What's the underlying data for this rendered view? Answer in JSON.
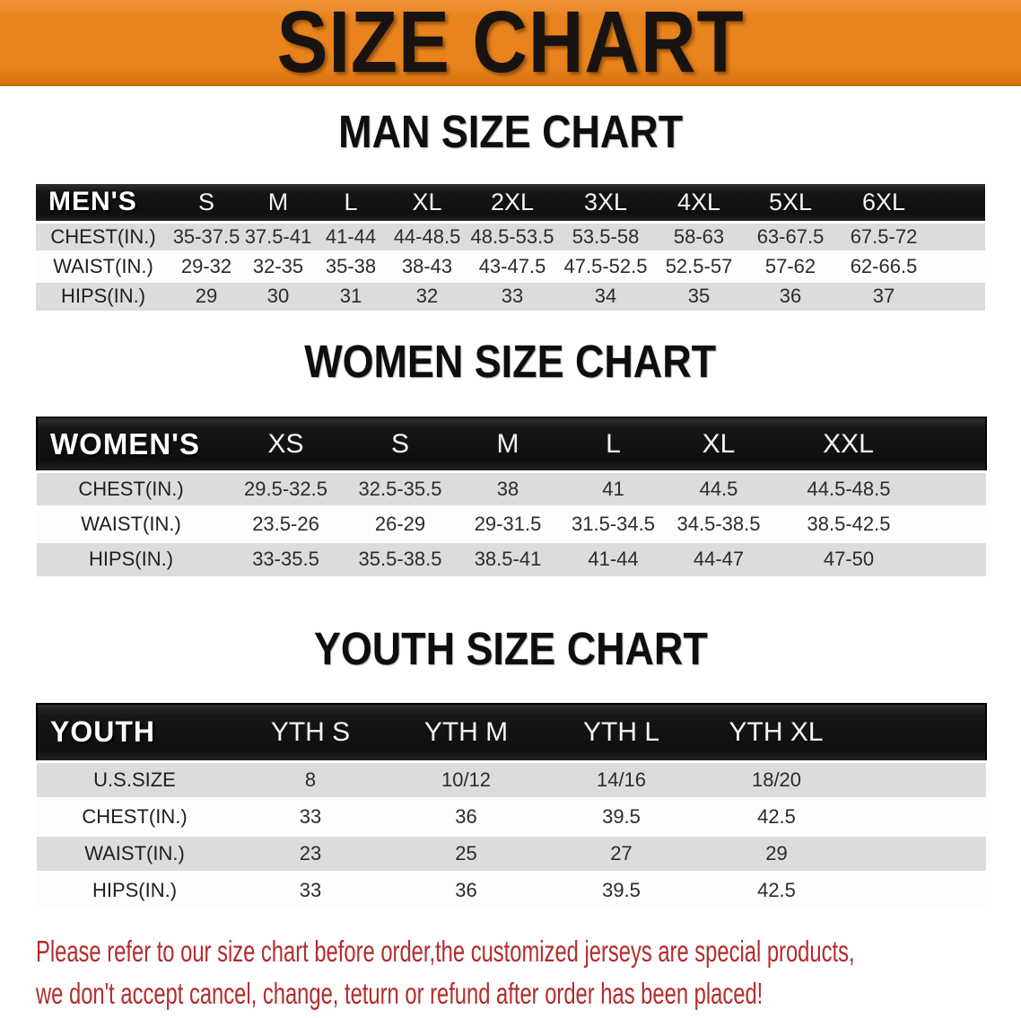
{
  "banner": {
    "title": "SIZE CHART",
    "bg_color": "#E8831D",
    "text_color": "#181310"
  },
  "sections": [
    {
      "id": "men",
      "title": "MAN SIZE CHART",
      "corner_label": "MEN'S",
      "columns": [
        "S",
        "M",
        "L",
        "XL",
        "2XL",
        "3XL",
        "4XL",
        "5XL",
        "6XL"
      ],
      "rows": [
        {
          "label": "CHEST(IN.)",
          "values": [
            "35-37.5",
            "37.5-41",
            "41-44",
            "44-48.5",
            "48.5-53.5",
            "53.5-58",
            "58-63",
            "63-67.5",
            "67.5-72"
          ]
        },
        {
          "label": "WAIST(IN.)",
          "values": [
            "29-32",
            "32-35",
            "35-38",
            "38-43",
            "43-47.5",
            "47.5-52.5",
            "52.5-57",
            "57-62",
            "62-66.5"
          ]
        },
        {
          "label": "HIPS(IN.)",
          "values": [
            "29",
            "30",
            "31",
            "32",
            "33",
            "34",
            "35",
            "36",
            "37"
          ]
        }
      ]
    },
    {
      "id": "women",
      "title": "WOMEN SIZE CHART",
      "corner_label": "WOMEN'S",
      "columns": [
        "XS",
        "S",
        "M",
        "L",
        "XL",
        "XXL"
      ],
      "rows": [
        {
          "label": "CHEST(IN.)",
          "values": [
            "29.5-32.5",
            "32.5-35.5",
            "38",
            "41",
            "44.5",
            "44.5-48.5"
          ]
        },
        {
          "label": "WAIST(IN.)",
          "values": [
            "23.5-26",
            "26-29",
            "29-31.5",
            "31.5-34.5",
            "34.5-38.5",
            "38.5-42.5"
          ]
        },
        {
          "label": "HIPS(IN.)",
          "values": [
            "33-35.5",
            "35.5-38.5",
            "38.5-41",
            "41-44",
            "44-47",
            "47-50"
          ]
        }
      ]
    },
    {
      "id": "youth",
      "title": "YOUTH SIZE CHART",
      "corner_label": "YOUTH",
      "columns": [
        "YTH S",
        "YTH M",
        "YTH L",
        "YTH XL"
      ],
      "rows": [
        {
          "label": "U.S.SIZE",
          "values": [
            "8",
            "10/12",
            "14/16",
            "18/20"
          ]
        },
        {
          "label": "CHEST(IN.)",
          "values": [
            "33",
            "36",
            "39.5",
            "42.5"
          ]
        },
        {
          "label": "WAIST(IN.)",
          "values": [
            "23",
            "25",
            "27",
            "29"
          ]
        },
        {
          "label": "HIPS(IN.)",
          "values": [
            "33",
            "36",
            "39.5",
            "42.5"
          ]
        }
      ]
    }
  ],
  "footnote": {
    "line1": "Please refer to our size chart before order,the customized jerseys are special products,",
    "line2": "we don't accept cancel, change, teturn or refund after order has been placed!",
    "color": "#B42C2C"
  },
  "colors": {
    "row_alt": "#DCDCDC",
    "header_bar": "#161616"
  }
}
